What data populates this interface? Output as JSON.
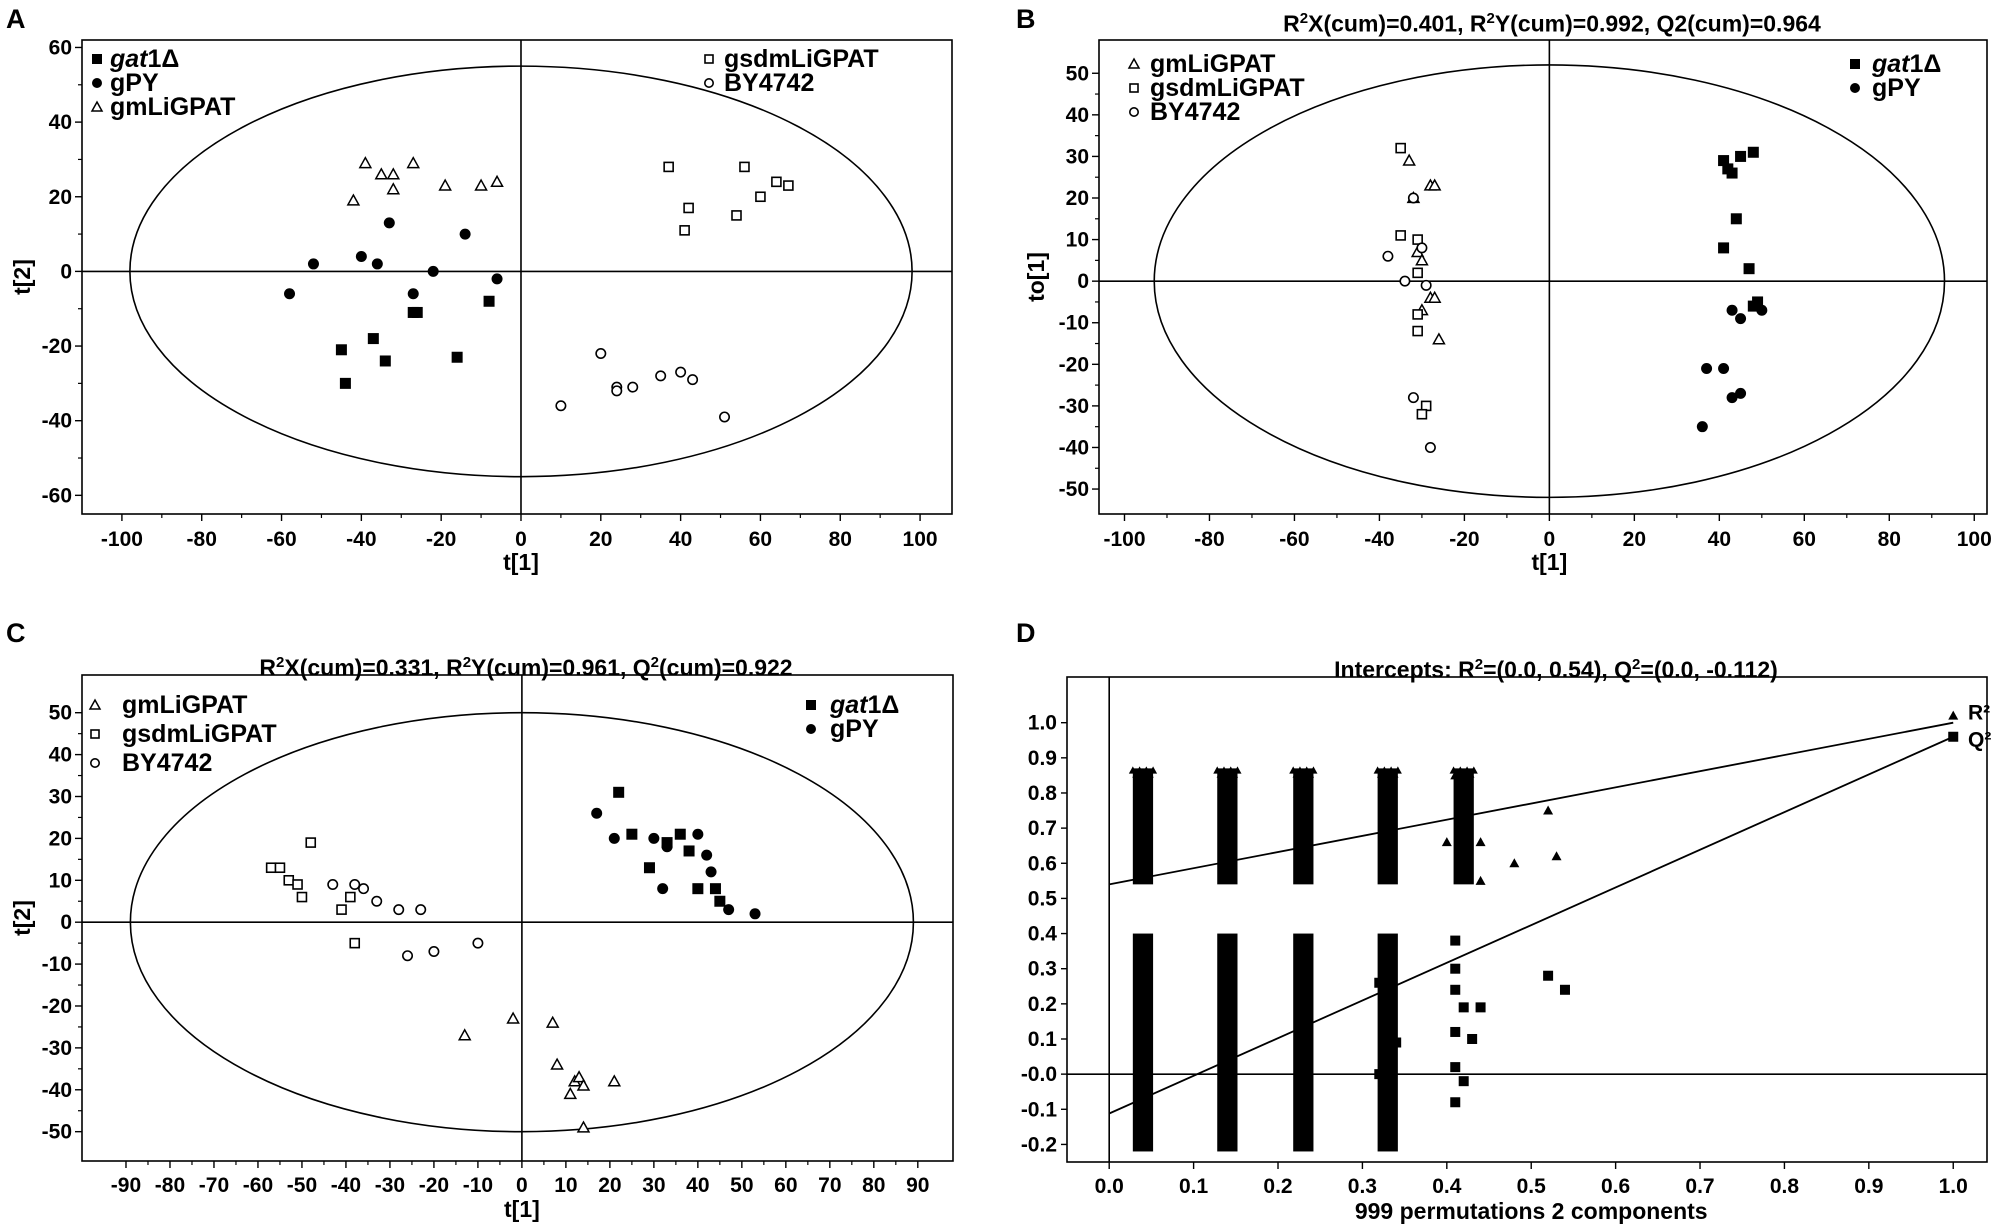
{
  "figure": {
    "background": "#ffffff",
    "ink": "#000000"
  },
  "chart_data": [
    {
      "panel": "A",
      "type": "scatter",
      "title": "",
      "xlabel": "t[1]",
      "ylabel": "t[2]",
      "xlim": [
        -110,
        108
      ],
      "ylim": [
        -65,
        62
      ],
      "xticks": [
        -100,
        -80,
        -60,
        -40,
        -20,
        0,
        20,
        40,
        60,
        80,
        100
      ],
      "yticks": [
        -60,
        -40,
        -20,
        0,
        20,
        40,
        60
      ],
      "ellipse": {
        "rx": 98,
        "ry": 55
      },
      "legend": [
        {
          "position": "top-left",
          "entries": [
            {
              "marker": "square-filled",
              "text": "gat1Δ",
              "italic_prefix": "gat",
              "suffix": "1Δ"
            },
            {
              "marker": "circle-filled",
              "text": "gPY"
            },
            {
              "marker": "triangle-open",
              "text": "gmLiGPAT"
            }
          ]
        },
        {
          "position": "top-right",
          "entries": [
            {
              "marker": "square-open",
              "text": "gsdmLiGPAT"
            },
            {
              "marker": "circle-open",
              "text": "BY4742"
            }
          ]
        }
      ],
      "series": [
        {
          "name": "gat1Δ",
          "marker": "square-filled",
          "points": [
            [
              -45,
              -21
            ],
            [
              -44,
              -30
            ],
            [
              -37,
              -18
            ],
            [
              -34,
              -24
            ],
            [
              -27,
              -11
            ],
            [
              -26,
              -11
            ],
            [
              -16,
              -23
            ],
            [
              -8,
              -8
            ]
          ]
        },
        {
          "name": "gPY",
          "marker": "circle-filled",
          "points": [
            [
              -58,
              -6
            ],
            [
              -52,
              2
            ],
            [
              -40,
              4
            ],
            [
              -36,
              2
            ],
            [
              -33,
              13
            ],
            [
              -27,
              -6
            ],
            [
              -22,
              0
            ],
            [
              -14,
              10
            ],
            [
              -6,
              -2
            ]
          ]
        },
        {
          "name": "gmLiGPAT",
          "marker": "triangle-open",
          "points": [
            [
              -42,
              19
            ],
            [
              -39,
              29
            ],
            [
              -35,
              26
            ],
            [
              -32,
              26
            ],
            [
              -32,
              22
            ],
            [
              -27,
              29
            ],
            [
              -19,
              23
            ],
            [
              -10,
              23
            ],
            [
              -6,
              24
            ]
          ]
        },
        {
          "name": "gsdmLiGPAT",
          "marker": "square-open",
          "points": [
            [
              37,
              28
            ],
            [
              41,
              11
            ],
            [
              42,
              17
            ],
            [
              54,
              15
            ],
            [
              56,
              28
            ],
            [
              60,
              20
            ],
            [
              64,
              24
            ],
            [
              67,
              23
            ]
          ]
        },
        {
          "name": "BY4742",
          "marker": "circle-open",
          "points": [
            [
              10,
              -36
            ],
            [
              20,
              -22
            ],
            [
              24,
              -31
            ],
            [
              24,
              -32
            ],
            [
              28,
              -31
            ],
            [
              35,
              -28
            ],
            [
              40,
              -27
            ],
            [
              43,
              -29
            ],
            [
              51,
              -39
            ]
          ]
        }
      ]
    },
    {
      "panel": "B",
      "type": "scatter",
      "title": "R²X(cum)=0.401, R²Y(cum)=0.992, Q2(cum)=0.964",
      "xlabel": "t[1]",
      "ylabel": "to[1]",
      "xlim": [
        -106,
        103
      ],
      "ylim": [
        -56,
        58
      ],
      "xticks": [
        -100,
        -80,
        -60,
        -40,
        -20,
        0,
        20,
        40,
        60,
        80,
        100
      ],
      "yticks": [
        -50,
        -40,
        -30,
        -20,
        -10,
        0,
        10,
        20,
        30,
        40,
        50
      ],
      "ellipse": {
        "rx": 93,
        "ry": 52
      },
      "legend": [
        {
          "position": "top-left",
          "entries": [
            {
              "marker": "triangle-open",
              "text": "gmLiGPAT"
            },
            {
              "marker": "square-open",
              "text": "gsdmLiGPAT"
            },
            {
              "marker": "circle-open",
              "text": "BY4742"
            }
          ]
        },
        {
          "position": "top-right",
          "entries": [
            {
              "marker": "square-filled",
              "text": "gat1Δ",
              "italic_prefix": "gat",
              "suffix": "1Δ"
            },
            {
              "marker": "circle-filled",
              "text": "gPY"
            }
          ]
        }
      ],
      "series": [
        {
          "name": "gmLiGPAT",
          "marker": "triangle-open",
          "points": [
            [
              -33,
              29
            ],
            [
              -32,
              20
            ],
            [
              -28,
              23
            ],
            [
              -27,
              23
            ],
            [
              -31,
              7
            ],
            [
              -30,
              5
            ],
            [
              -30,
              -7
            ],
            [
              -28,
              -4
            ],
            [
              -27,
              -4
            ],
            [
              -26,
              -14
            ]
          ]
        },
        {
          "name": "gsdmLiGPAT",
          "marker": "square-open",
          "points": [
            [
              -35,
              32
            ],
            [
              -35,
              11
            ],
            [
              -31,
              10
            ],
            [
              -31,
              2
            ],
            [
              -31,
              -8
            ],
            [
              -31,
              -12
            ],
            [
              -29,
              -30
            ],
            [
              -30,
              -32
            ]
          ]
        },
        {
          "name": "BY4742",
          "marker": "circle-open",
          "points": [
            [
              -38,
              6
            ],
            [
              -32,
              20
            ],
            [
              -30,
              8
            ],
            [
              -34,
              0
            ],
            [
              -29,
              -1
            ],
            [
              -32,
              -28
            ],
            [
              -28,
              -40
            ]
          ]
        },
        {
          "name": "gat1Δ",
          "marker": "square-filled",
          "points": [
            [
              41,
              29
            ],
            [
              42,
              27
            ],
            [
              45,
              30
            ],
            [
              48,
              31
            ],
            [
              43,
              26
            ],
            [
              44,
              15
            ],
            [
              41,
              8
            ],
            [
              47,
              3
            ],
            [
              49,
              -5
            ],
            [
              48,
              -6
            ]
          ]
        },
        {
          "name": "gPY",
          "marker": "circle-filled",
          "points": [
            [
              43,
              -7
            ],
            [
              45,
              -9
            ],
            [
              50,
              -7
            ],
            [
              37,
              -21
            ],
            [
              41,
              -21
            ],
            [
              43,
              -28
            ],
            [
              45,
              -27
            ],
            [
              36,
              -35
            ]
          ]
        }
      ]
    },
    {
      "panel": "C",
      "type": "scatter",
      "title": "R²X(cum)=0.331, R²Y(cum)=0.961, Q²(cum)=0.922",
      "xlabel": "t[1]",
      "ylabel": "t[2]",
      "xlim": [
        -100,
        98
      ],
      "ylim": [
        -57,
        59
      ],
      "xticks": [
        -90,
        -80,
        -70,
        -60,
        -50,
        -40,
        -30,
        -20,
        -10,
        0,
        10,
        20,
        30,
        40,
        50,
        60,
        70,
        80,
        90
      ],
      "yticks": [
        -50,
        -40,
        -30,
        -20,
        -10,
        0,
        10,
        20,
        30,
        40,
        50
      ],
      "ellipse": {
        "rx": 89,
        "ry": 50
      },
      "legend": [
        {
          "position": "top-left",
          "entries": [
            {
              "marker": "triangle-open",
              "text": "gmLiGPAT"
            },
            {
              "marker": "square-open",
              "text": "gsdmLiGPAT"
            },
            {
              "marker": "circle-open",
              "text": "BY4742"
            }
          ]
        },
        {
          "position": "top-right",
          "entries": [
            {
              "marker": "square-filled",
              "text": "gat1Δ",
              "italic_prefix": "gat",
              "suffix": "1Δ"
            },
            {
              "marker": "circle-filled",
              "text": "gPY"
            }
          ]
        }
      ],
      "series": [
        {
          "name": "gat1Δ",
          "marker": "square-filled",
          "points": [
            [
              22,
              31
            ],
            [
              25,
              21
            ],
            [
              36,
              21
            ],
            [
              29,
              13
            ],
            [
              33,
              19
            ],
            [
              38,
              17
            ],
            [
              40,
              8
            ],
            [
              45,
              5
            ],
            [
              44,
              8
            ]
          ]
        },
        {
          "name": "gPY",
          "marker": "circle-filled",
          "points": [
            [
              17,
              26
            ],
            [
              21,
              20
            ],
            [
              30,
              20
            ],
            [
              33,
              18
            ],
            [
              40,
              21
            ],
            [
              42,
              16
            ],
            [
              43,
              12
            ],
            [
              32,
              8
            ],
            [
              47,
              3
            ],
            [
              53,
              2
            ]
          ]
        },
        {
          "name": "gsdmLiGPAT",
          "marker": "square-open",
          "points": [
            [
              -57,
              13
            ],
            [
              -55,
              13
            ],
            [
              -53,
              10
            ],
            [
              -51,
              9
            ],
            [
              -50,
              6
            ],
            [
              -48,
              19
            ],
            [
              -41,
              3
            ],
            [
              -38,
              -5
            ],
            [
              -39,
              6
            ]
          ]
        },
        {
          "name": "BY4742",
          "marker": "circle-open",
          "points": [
            [
              -43,
              9
            ],
            [
              -38,
              9
            ],
            [
              -36,
              8
            ],
            [
              -33,
              5
            ],
            [
              -28,
              3
            ],
            [
              -23,
              3
            ],
            [
              -26,
              -8
            ],
            [
              -20,
              -7
            ],
            [
              -10,
              -5
            ]
          ]
        },
        {
          "name": "gmLiGPAT",
          "marker": "triangle-open",
          "points": [
            [
              -13,
              -27
            ],
            [
              -2,
              -23
            ],
            [
              7,
              -24
            ],
            [
              8,
              -34
            ],
            [
              11,
              -41
            ],
            [
              12,
              -38
            ],
            [
              13,
              -37
            ],
            [
              14,
              -39
            ],
            [
              21,
              -38
            ],
            [
              14,
              -49
            ]
          ]
        }
      ]
    },
    {
      "panel": "D",
      "type": "scatter",
      "title": "Intercepts: R²=(0.0, 0.54), Q²=(0.0, -0.112)",
      "xlabel": "999 permutations 2 components",
      "ylabel": "",
      "xlim": [
        -0.05,
        1.04
      ],
      "ylim": [
        -0.25,
        1.13
      ],
      "xticks": [
        "0.0",
        "0.1",
        "0.2",
        "0.3",
        "0.4",
        "0.5",
        "0.6",
        "0.7",
        "0.8",
        "0.9",
        "1.0"
      ],
      "yticks": [
        "-0.2",
        "-0.1",
        "-0.0",
        "0.1",
        "0.2",
        "0.3",
        "0.4",
        "0.5",
        "0.6",
        "0.7",
        "0.8",
        "0.9",
        "1.0"
      ],
      "end_labels": {
        "r2": "R²",
        "q2": "Q²"
      },
      "regression_lines": [
        {
          "name": "R²",
          "intercept": 0.54,
          "end_value": 1.0
        },
        {
          "name": "Q²",
          "intercept": -0.112,
          "end_value": 0.96
        }
      ],
      "baseline_y": 0,
      "bands": [
        {
          "name": "R²",
          "marker": "triangle-filled",
          "x_groups": [
            0.04,
            0.14,
            0.23,
            0.33,
            0.42
          ],
          "y_range": [
            0.54,
            0.87
          ]
        },
        {
          "name": "Q²",
          "marker": "square-filled",
          "x_groups": [
            0.04,
            0.14,
            0.23,
            0.33
          ],
          "y_range": [
            -0.22,
            0.4
          ]
        }
      ],
      "series": [
        {
          "name": "R² permutations",
          "marker": "triangle-filled",
          "points": [
            [
              0.41,
              0.85
            ],
            [
              0.42,
              0.76
            ],
            [
              0.4,
              0.66
            ],
            [
              0.42,
              0.66
            ],
            [
              0.44,
              0.66
            ],
            [
              0.52,
              0.75
            ],
            [
              0.53,
              0.62
            ],
            [
              0.48,
              0.6
            ],
            [
              0.44,
              0.55
            ]
          ]
        },
        {
          "name": "Q² permutations",
          "marker": "square-filled",
          "points": [
            [
              0.41,
              0.38
            ],
            [
              0.41,
              0.3
            ],
            [
              0.41,
              0.24
            ],
            [
              0.42,
              0.19
            ],
            [
              0.44,
              0.19
            ],
            [
              0.41,
              0.12
            ],
            [
              0.43,
              0.1
            ],
            [
              0.41,
              0.02
            ],
            [
              0.42,
              -0.02
            ],
            [
              0.41,
              -0.08
            ],
            [
              0.52,
              0.28
            ],
            [
              0.54,
              0.24
            ],
            [
              0.33,
              0.32
            ],
            [
              0.32,
              0.26
            ],
            [
              0.33,
              0.18
            ],
            [
              0.34,
              0.09
            ],
            [
              0.32,
              0.0
            ],
            [
              0.33,
              -0.11
            ]
          ]
        },
        {
          "name": "R² original",
          "marker": "triangle-filled",
          "points": [
            [
              1.0,
              1.02
            ]
          ]
        },
        {
          "name": "Q² original",
          "marker": "square-filled",
          "points": [
            [
              1.0,
              0.96
            ]
          ]
        }
      ]
    }
  ]
}
